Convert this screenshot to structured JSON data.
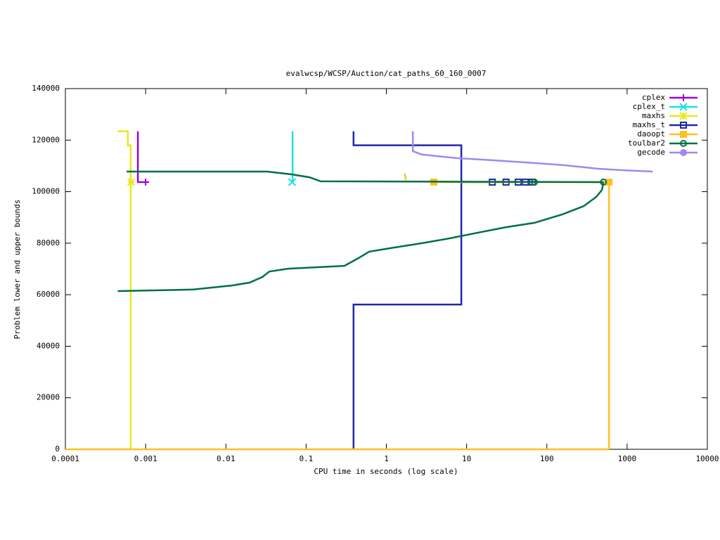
{
  "chart_data": {
    "type": "line",
    "title": "evalwcsp/WCSP/Auction/cat_paths_60_160_0007",
    "x_label": "CPU time in seconds (log scale)",
    "y_label": "Problem lower and upper bounds",
    "xlog": true,
    "xlim": [
      0.0001,
      10000
    ],
    "xticks": [
      0.0001,
      0.001,
      0.01,
      0.1,
      1,
      10,
      100,
      1000,
      10000
    ],
    "ylim": [
      0,
      140000
    ],
    "yticks": [
      0,
      20000,
      40000,
      60000,
      80000,
      100000,
      120000,
      140000
    ],
    "legend": "top-right",
    "series": [
      {
        "name": "cplex",
        "color": "#a000e0",
        "marker": "plus",
        "x": [
          0.0008,
          0.0008,
          0.001
        ],
        "values": [
          123400,
          103700,
          103700
        ],
        "marker_x": [
          0.001
        ],
        "marker_values": [
          103700
        ]
      },
      {
        "name": "cplex_t",
        "color": "#20e0e0",
        "marker": "cross",
        "x": [
          0.0678,
          0.0678,
          0.067
        ],
        "values": [
          123400,
          103700,
          103700
        ],
        "marker_x": [
          0.067
        ],
        "marker_values": [
          103700
        ]
      },
      {
        "name": "maxhs",
        "color": "#e8e820",
        "marker": "star",
        "x": [
          0.00045,
          0.0006,
          0.0006,
          0.00065,
          0.00065
        ],
        "values": [
          123400,
          123400,
          118000,
          118000,
          0
        ],
        "marker_x": [
          0.00066
        ],
        "marker_values": [
          103700
        ]
      },
      {
        "name": "maxhs_t",
        "color": "#2028a8",
        "marker": "box-open",
        "x": [
          0.39,
          0.39,
          8.6,
          8.6,
          70,
          null,
          0.39,
          0.39,
          8.6,
          8.6
        ],
        "values": [
          123400,
          118000,
          118000,
          103700,
          103700,
          null,
          0,
          56200,
          56200,
          103700
        ],
        "marker_x": [
          20.9,
          31,
          44,
          54,
          66
        ],
        "marker_values": [
          103700,
          103700,
          103700,
          103700,
          103700
        ]
      },
      {
        "name": "daoopt",
        "color": "#ffc020",
        "marker": "box-filled",
        "x": [
          1.7,
          1.75,
          null,
          3.9,
          595,
          595,
          null,
          0.0001,
          595
        ],
        "values": [
          107000,
          104500,
          null,
          103700,
          103700,
          0,
          null,
          0,
          0
        ],
        "marker_x": [
          3.9,
          595
        ],
        "marker_values": [
          103700,
          103700
        ]
      },
      {
        "name": "toulbar2",
        "color": "#007040",
        "marker": "circle-open",
        "x": [
          0.00058,
          0.0327,
          0.066,
          0.11,
          0.152,
          507,
          null,
          0.00045,
          0.0039,
          0.012,
          0.0198,
          0.0285,
          0.0348,
          0.06,
          0.3,
          0.45,
          0.61,
          1.24,
          2.77,
          6.2,
          14,
          31,
          70,
          157,
          288,
          414,
          487,
          507
        ],
        "values": [
          107800,
          107800,
          106700,
          105600,
          104000,
          103700,
          null,
          61400,
          62000,
          63600,
          64700,
          66900,
          69000,
          70100,
          71200,
          74200,
          76700,
          78300,
          80000,
          81900,
          84100,
          86200,
          87900,
          91200,
          94400,
          98000,
          100700,
          103700
        ],
        "marker_x": [
          70,
          507
        ],
        "marker_values": [
          103700,
          103700
        ]
      },
      {
        "name": "gecode",
        "color": "#a088f0",
        "marker": "circle-filled",
        "x": [
          2.14,
          2.14,
          2.77,
          7.5,
          20.9,
          70,
          157,
          440,
          789,
          2080
        ],
        "values": [
          123400,
          115700,
          114400,
          113000,
          112200,
          111100,
          110300,
          108900,
          108400,
          107800
        ]
      }
    ]
  }
}
